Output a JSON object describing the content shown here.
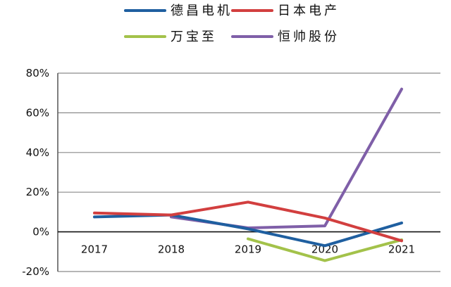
{
  "chart_data": {
    "type": "line",
    "categories": [
      "2017",
      "2018",
      "2019",
      "2020",
      "2021"
    ],
    "y_tick_labels": [
      "-20%",
      "0%",
      "20%",
      "40%",
      "60%",
      "80%"
    ],
    "y_ticks": [
      -20,
      0,
      20,
      40,
      60,
      80
    ],
    "ylim": [
      -20,
      80
    ],
    "grid": true,
    "legend_position": "top",
    "series": [
      {
        "name": "德昌电机",
        "color": "#1f5fa0",
        "values": [
          7.5,
          8.5,
          1.5,
          -7,
          4.5
        ]
      },
      {
        "name": "日本电产",
        "color": "#d23f3f",
        "values": [
          9.5,
          8.5,
          15,
          7,
          -4.5
        ]
      },
      {
        "name": "万宝至",
        "color": "#a3c24a",
        "values": [
          null,
          null,
          -3.5,
          -14.5,
          -4
        ]
      },
      {
        "name": "恒帅股份",
        "color": "#7f5fa8",
        "values": [
          null,
          7.5,
          2,
          3,
          72
        ]
      }
    ]
  }
}
